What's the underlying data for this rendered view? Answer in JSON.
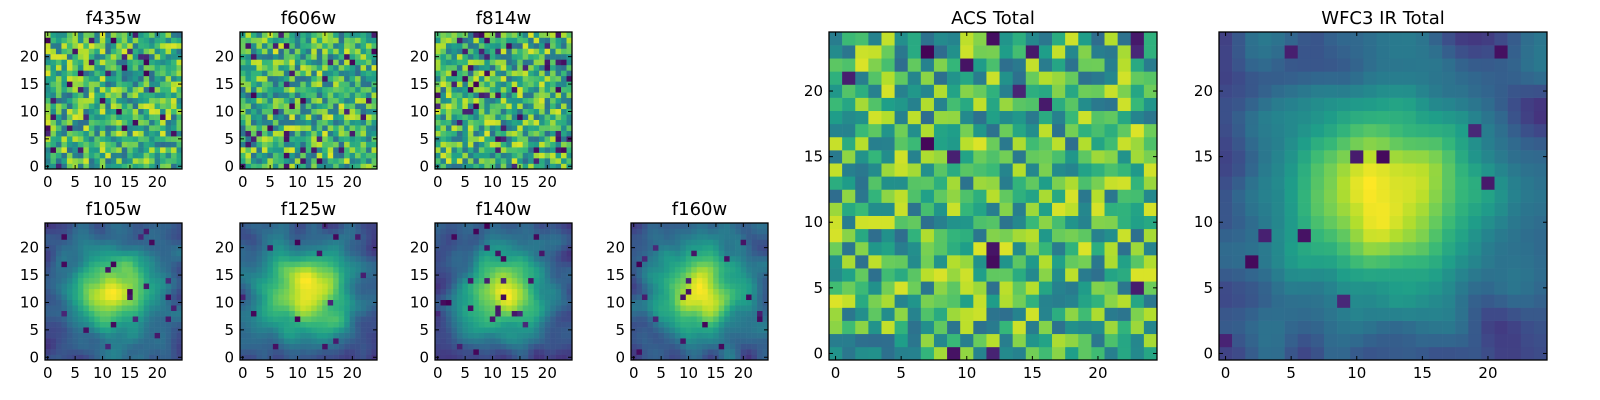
{
  "figure": {
    "colormap": "viridis",
    "frame_color": "#000000",
    "background": "#ffffff"
  },
  "chart_data": [
    {
      "type": "heatmap",
      "title": "f435w",
      "pixels": 25,
      "seed": 11,
      "style": "noise",
      "low_outliers": 0.06,
      "xticks": [
        0,
        5,
        10,
        15,
        20
      ],
      "yticks": [
        0,
        5,
        10,
        15,
        20
      ],
      "xlim": [
        -0.5,
        24.5
      ],
      "ylim": [
        -0.5,
        24.5
      ]
    },
    {
      "type": "heatmap",
      "title": "f606w",
      "pixels": 25,
      "seed": 23,
      "style": "noise",
      "low_outliers": 0.05,
      "xticks": [
        0,
        5,
        10,
        15,
        20
      ],
      "yticks": [
        0,
        5,
        10,
        15,
        20
      ],
      "xlim": [
        -0.5,
        24.5
      ],
      "ylim": [
        -0.5,
        24.5
      ]
    },
    {
      "type": "heatmap",
      "title": "f814w",
      "pixels": 25,
      "seed": 37,
      "style": "noise",
      "low_outliers": 0.08,
      "xticks": [
        0,
        5,
        10,
        15,
        20
      ],
      "yticks": [
        0,
        5,
        10,
        15,
        20
      ],
      "xlim": [
        -0.5,
        24.5
      ],
      "ylim": [
        -0.5,
        24.5
      ]
    },
    {
      "type": "heatmap",
      "title": "f105w",
      "pixels": 25,
      "seed": 41,
      "style": "smooth",
      "low_outliers": 0.03,
      "xticks": [
        0,
        5,
        10,
        15,
        20
      ],
      "yticks": [
        0,
        5,
        10,
        15,
        20
      ],
      "xlim": [
        -0.5,
        24.5
      ],
      "ylim": [
        -0.5,
        24.5
      ]
    },
    {
      "type": "heatmap",
      "title": "f125w",
      "pixels": 25,
      "seed": 53,
      "style": "smooth",
      "low_outliers": 0.03,
      "xticks": [
        0,
        5,
        10,
        15,
        20
      ],
      "yticks": [
        0,
        5,
        10,
        15,
        20
      ],
      "xlim": [
        -0.5,
        24.5
      ],
      "ylim": [
        -0.5,
        24.5
      ]
    },
    {
      "type": "heatmap",
      "title": "f140w",
      "pixels": 25,
      "seed": 67,
      "style": "smooth",
      "low_outliers": 0.03,
      "xticks": [
        0,
        5,
        10,
        15,
        20
      ],
      "yticks": [
        0,
        5,
        10,
        15,
        20
      ],
      "xlim": [
        -0.5,
        24.5
      ],
      "ylim": [
        -0.5,
        24.5
      ]
    },
    {
      "type": "heatmap",
      "title": "f160w",
      "pixels": 25,
      "seed": 79,
      "style": "smooth",
      "low_outliers": 0.04,
      "xticks": [
        0,
        5,
        10,
        15,
        20
      ],
      "yticks": [
        0,
        5,
        10,
        15,
        20
      ],
      "xlim": [
        -0.5,
        24.5
      ],
      "ylim": [
        -0.5,
        24.5
      ]
    },
    {
      "type": "heatmap",
      "title": "ACS Total",
      "pixels": 25,
      "seed": 97,
      "style": "noise",
      "low_outliers": 0.03,
      "xticks": [
        0,
        5,
        10,
        15,
        20
      ],
      "yticks": [
        0,
        5,
        10,
        15,
        20
      ],
      "xlim": [
        -0.5,
        24.5
      ],
      "ylim": [
        -0.5,
        24.5
      ]
    },
    {
      "type": "heatmap",
      "title": "WFC3 IR Total",
      "pixels": 25,
      "seed": 113,
      "style": "smooth",
      "low_outliers": 0.02,
      "xticks": [
        0,
        5,
        10,
        15,
        20
      ],
      "yticks": [
        0,
        5,
        10,
        15,
        20
      ],
      "xlim": [
        -0.5,
        24.5
      ],
      "ylim": [
        -0.5,
        24.5
      ]
    }
  ]
}
